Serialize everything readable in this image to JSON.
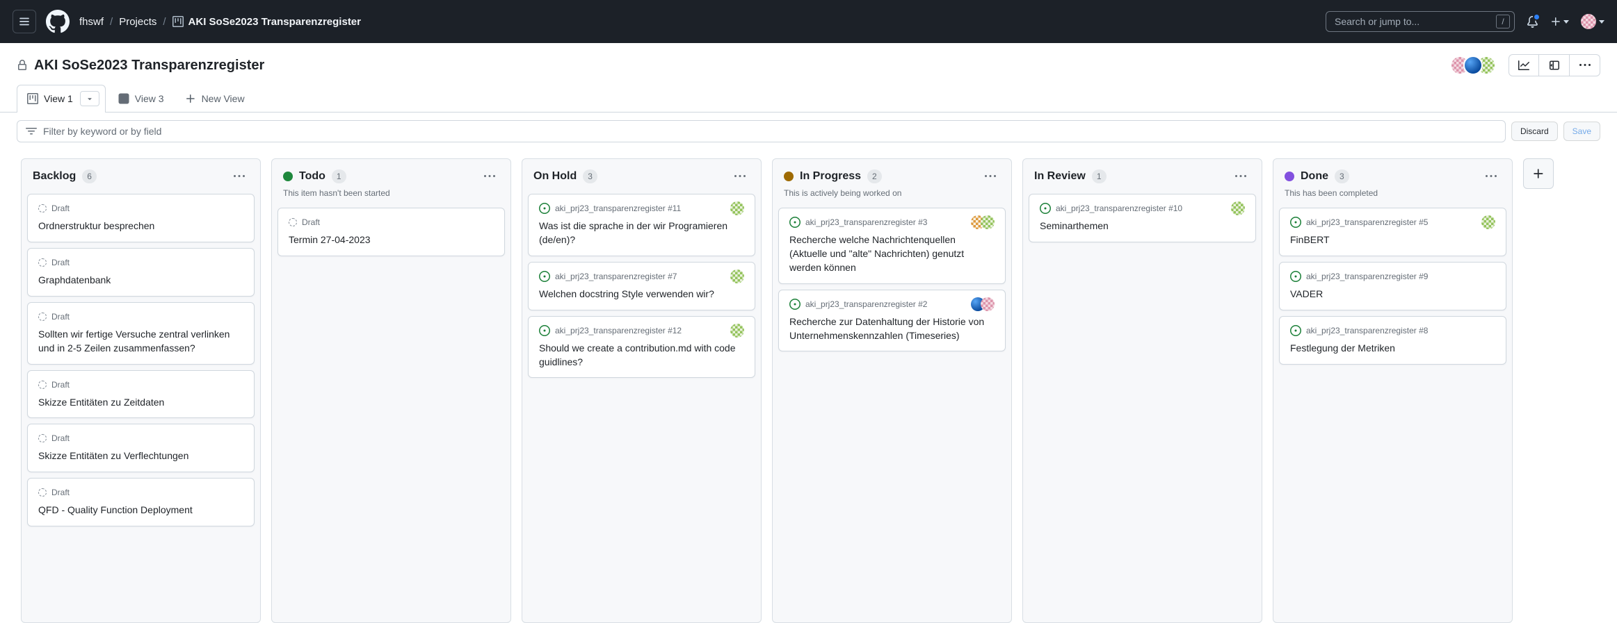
{
  "header": {
    "org": "fhswf",
    "section": "Projects",
    "project": "AKI SoSe2023 Transparenzregister",
    "separator": "/",
    "search_placeholder": "Search or jump to...",
    "search_shortcut": "/"
  },
  "title_bar": {
    "title": "AKI SoSe2023 Transparenzregister",
    "avatars": [
      "pink-identicon",
      "blue-sphere",
      "green-identicon"
    ]
  },
  "tabs": {
    "view1_label": "View 1",
    "view3_label": "View 3",
    "new_view_label": "New View"
  },
  "filter_bar": {
    "placeholder": "Filter by keyword or by field",
    "discard_label": "Discard",
    "save_label": "Save"
  },
  "board": {
    "draft_label": "Draft",
    "columns": [
      {
        "name": "Backlog",
        "count": "6",
        "description": "",
        "dot_color": "",
        "cards": [
          {
            "type": "draft",
            "title": "Ordnerstruktur besprechen"
          },
          {
            "type": "draft",
            "title": "Graphdatenbank"
          },
          {
            "type": "draft",
            "title": "Sollten wir fertige Versuche zentral verlinken und in 2-5 Zeilen zusammenfassen?"
          },
          {
            "type": "draft",
            "title": "Skizze Entitäten zu Zeitdaten"
          },
          {
            "type": "draft",
            "title": "Skizze Entitäten zu Verflechtungen"
          },
          {
            "type": "draft",
            "title": "QFD - Quality Function Deployment"
          }
        ]
      },
      {
        "name": "Todo",
        "count": "1",
        "description": "This item hasn't been started",
        "dot_color": "#1f883d",
        "cards": [
          {
            "type": "draft",
            "title": "Termin 27-04-2023"
          }
        ]
      },
      {
        "name": "On Hold",
        "count": "3",
        "description": "",
        "dot_color": "",
        "cards": [
          {
            "type": "issue",
            "meta": "aki_prj23_transparenzregister #11",
            "title": "Was ist die sprache in der wir Programieren (de/en)?",
            "avatars": [
              "green-identicon"
            ]
          },
          {
            "type": "issue",
            "meta": "aki_prj23_transparenzregister #7",
            "title": "Welchen docstring Style verwenden wir?",
            "avatars": [
              "green-identicon"
            ]
          },
          {
            "type": "issue",
            "meta": "aki_prj23_transparenzregister #12",
            "title": "Should we create a contribution.md with code guidlines?",
            "avatars": [
              "green-identicon"
            ]
          }
        ]
      },
      {
        "name": "In Progress",
        "count": "2",
        "description": "This is actively being worked on",
        "dot_color": "#9e6a03",
        "cards": [
          {
            "type": "issue",
            "meta": "aki_prj23_transparenzregister #3",
            "title": "Recherche welche Nachrichtenquellen (Aktuelle und \"alte\" Nachrichten) genutzt werden können",
            "avatars": [
              "orange-identicon",
              "green-identicon"
            ]
          },
          {
            "type": "issue",
            "meta": "aki_prj23_transparenzregister #2",
            "title": "Recherche zur Datenhaltung der Historie von Unternehmenskennzahlen (Timeseries)",
            "avatars": [
              "blue-sphere",
              "pink-identicon"
            ]
          }
        ]
      },
      {
        "name": "In Review",
        "count": "1",
        "description": "",
        "dot_color": "",
        "cards": [
          {
            "type": "issue",
            "meta": "aki_prj23_transparenzregister #10",
            "title": "Seminarthemen",
            "avatars": [
              "green-identicon"
            ]
          }
        ]
      },
      {
        "name": "Done",
        "count": "3",
        "description": "This has been completed",
        "dot_color": "#8250df",
        "cards": [
          {
            "type": "issue",
            "meta": "aki_prj23_transparenzregister #5",
            "title": "FinBERT",
            "avatars": [
              "green-identicon"
            ]
          },
          {
            "type": "issue",
            "meta": "aki_prj23_transparenzregister #9",
            "title": "VADER",
            "avatars": []
          },
          {
            "type": "issue",
            "meta": "aki_prj23_transparenzregister #8",
            "title": "Festlegung der Metriken",
            "avatars": []
          }
        ]
      }
    ]
  },
  "avatar_styles": {
    "pink-identicon": {
      "kind": "checker",
      "bg": "#f3d9e1",
      "fg": "#dd94ab"
    },
    "blue-sphere": {
      "kind": "sphere",
      "bg": "#0a4b9e",
      "fg": "#57a5f5"
    },
    "green-identicon": {
      "kind": "checker",
      "bg": "#e9f2dc",
      "fg": "#94c35c"
    },
    "orange-identicon": {
      "kind": "checker",
      "bg": "#faf3e7",
      "fg": "#dd9a3e"
    }
  },
  "colors": {
    "accent_blue": "#0969da",
    "open_issue_green": "#1a7f37",
    "todo_dot_green": "#1f883d",
    "in_progress_dot_yellow": "#9e6a03",
    "done_dot_purple": "#8250df",
    "header_bg": "#1c2128"
  }
}
